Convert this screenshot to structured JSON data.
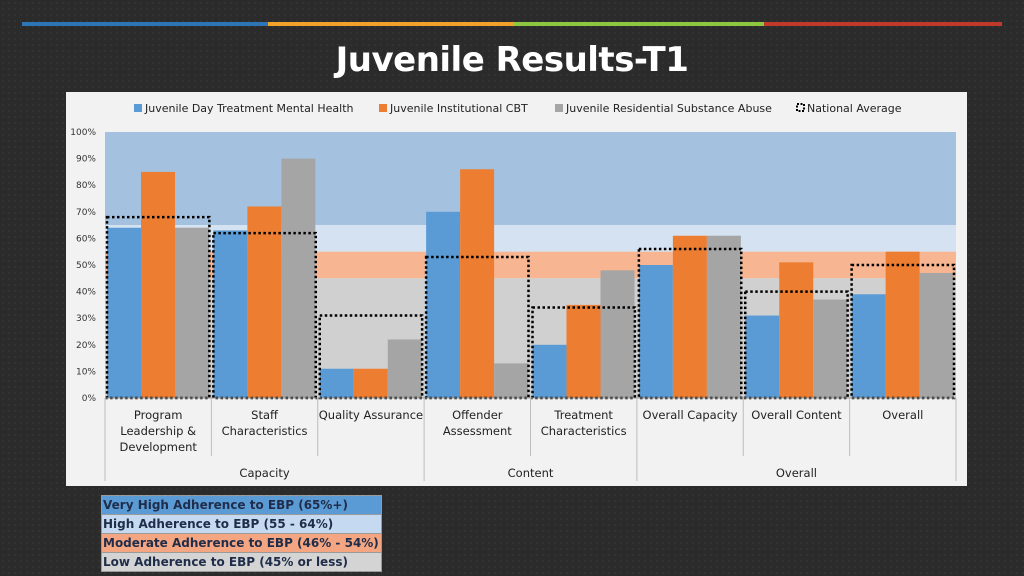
{
  "page": {
    "title": "Juvenile Results-T1",
    "accent_colors": [
      "#2e75b6",
      "#f2a22a",
      "#8dc63f",
      "#c0392b"
    ]
  },
  "chart_data": {
    "type": "bar",
    "ylim": [
      0,
      100
    ],
    "y_ticks": [
      "0%",
      "10%",
      "20%",
      "30%",
      "40%",
      "50%",
      "60%",
      "70%",
      "80%",
      "90%",
      "100%"
    ],
    "categories": [
      "Program Leadership & Development",
      "Staff Characteristics",
      "Quality Assurance",
      "Offender Assessment",
      "Treatment Characteristics",
      "Overall Capacity",
      "Overall Content",
      "Overall"
    ],
    "category_lines": [
      [
        "Program",
        "Leadership &",
        "Development"
      ],
      [
        "Staff",
        "Characteristics"
      ],
      [
        "Quality Assurance"
      ],
      [
        "Offender",
        "Assessment"
      ],
      [
        "Treatment",
        "Characteristics"
      ],
      [
        "Overall Capacity"
      ],
      [
        "Overall Content"
      ],
      [
        "Overall"
      ]
    ],
    "groups": [
      {
        "label": "Capacity",
        "start": 0,
        "end": 2
      },
      {
        "label": "Content",
        "start": 3,
        "end": 4
      },
      {
        "label": "Overall",
        "start": 5,
        "end": 7
      }
    ],
    "series": [
      {
        "name": "Juvenile Day Treatment Mental Health",
        "color": "#5b9bd5",
        "values": [
          64,
          63,
          11,
          70,
          20,
          50,
          31,
          39
        ]
      },
      {
        "name": "Juvenile Institutional CBT",
        "color": "#ed7d31",
        "values": [
          85,
          72,
          11,
          86,
          35,
          61,
          51,
          55
        ]
      },
      {
        "name": "Juvenile Residential Substance Abuse",
        "color": "#a5a5a5",
        "values": [
          64,
          90,
          22,
          13,
          48,
          61,
          37,
          47
        ]
      }
    ],
    "national_average": {
      "name": "National Average",
      "values": [
        68,
        62,
        31,
        53,
        34,
        56,
        40,
        50
      ]
    },
    "bands": [
      {
        "label": "Very High Adherence to EBP (65%+)",
        "from": 65,
        "to": 100,
        "color": "#a4c2e0"
      },
      {
        "label": "High Adherence to EBP (55 - 64%)",
        "from": 55,
        "to": 65,
        "color": "#d5e2f1"
      },
      {
        "label": "Moderate Adherence to EBP (46% - 54%)",
        "from": 45,
        "to": 55,
        "color": "#f7b591"
      },
      {
        "label": "Low Adherence to EBP (45% or less)",
        "from": 0,
        "to": 45,
        "color": "#d0d0d0"
      }
    ],
    "key_colors": [
      "#5b9bd5",
      "#c5daf0",
      "#f4a582",
      "#d4d4d4"
    ],
    "legend_position": "top"
  }
}
